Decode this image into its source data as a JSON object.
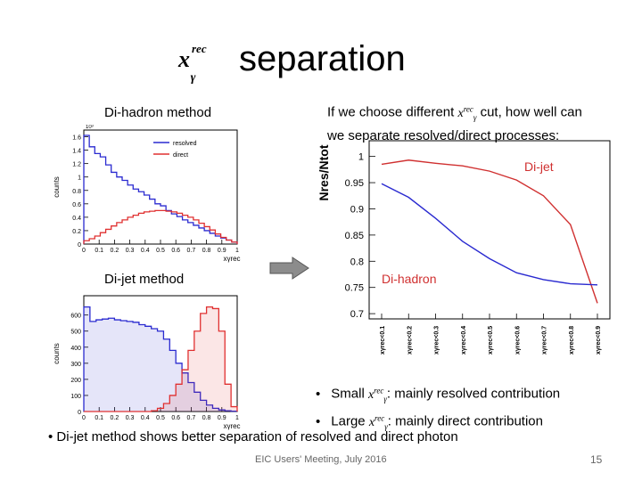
{
  "slide": {
    "title_symbol": "x",
    "title_sup": "rec",
    "title_sub": "γ",
    "title_word": "separation",
    "dihadron_method_label": "Di-hadron method",
    "dijet_method_label": "Di-jet method",
    "question_line1_a": "If we choose different ",
    "question_line1_b": " cut, how well can",
    "question_line2": "we separate resolved/direct processes:",
    "bullet_small_a": "Small ",
    "bullet_small_b": ": mainly resolved contribution",
    "bullet_large_a": "Large ",
    "bullet_large_b": ": mainly direct contribution",
    "bottom_bullet": "•  Di-jet method shows better separation of resolved and direct photon",
    "footer": "EIC Users' Meeting, July 2016",
    "page_number": "15",
    "arrow_icon": "right-arrow-icon"
  },
  "chart_data": [
    {
      "type": "histogram",
      "name": "di-hadron",
      "ylabel": "counts",
      "xlabel": "xγrec",
      "y_multiplier": "10³",
      "ylim": [
        0,
        1.7
      ],
      "xlim": [
        0,
        1.0
      ],
      "yticks": [
        "0",
        "0.2",
        "0.4",
        "0.6",
        "0.8",
        "1",
        "1.2",
        "1.4",
        "1.6"
      ],
      "xticks": [
        "0",
        "0.1",
        "0.2",
        "0.3",
        "0.4",
        "0.5",
        "0.6",
        "0.7",
        "0.8",
        "0.9",
        "1"
      ],
      "legend": [
        "resolved",
        "direct"
      ],
      "colors": {
        "resolved": "#2a2ad0",
        "direct": "#e03030"
      },
      "series": [
        {
          "name": "resolved",
          "values": [
            1.62,
            1.45,
            1.35,
            1.3,
            1.18,
            1.07,
            1.0,
            0.95,
            0.88,
            0.82,
            0.78,
            0.73,
            0.67,
            0.6,
            0.57,
            0.5,
            0.45,
            0.41,
            0.36,
            0.32,
            0.28,
            0.24,
            0.2,
            0.16,
            0.12,
            0.09,
            0.06,
            0.03
          ]
        },
        {
          "name": "direct",
          "values": [
            0.05,
            0.08,
            0.12,
            0.17,
            0.22,
            0.27,
            0.32,
            0.36,
            0.4,
            0.43,
            0.46,
            0.48,
            0.49,
            0.5,
            0.5,
            0.49,
            0.48,
            0.46,
            0.43,
            0.4,
            0.36,
            0.31,
            0.26,
            0.21,
            0.15,
            0.1,
            0.06,
            0.03
          ]
        }
      ]
    },
    {
      "type": "histogram",
      "name": "di-jet",
      "ylabel": "counts",
      "xlabel": "xγrec",
      "ylim": [
        0,
        720
      ],
      "xlim": [
        0,
        1.0
      ],
      "yticks": [
        "0",
        "100",
        "200",
        "300",
        "400",
        "500",
        "600"
      ],
      "xticks": [
        "0",
        "0.1",
        "0.2",
        "0.3",
        "0.4",
        "0.5",
        "0.6",
        "0.7",
        "0.8",
        "0.9",
        "1"
      ],
      "colors": {
        "resolved": "#2a2ad0",
        "direct": "#e03030"
      },
      "series": [
        {
          "name": "resolved",
          "values": [
            650,
            560,
            570,
            575,
            580,
            570,
            565,
            560,
            555,
            540,
            530,
            515,
            500,
            450,
            380,
            300,
            240,
            180,
            120,
            70,
            40,
            20,
            10,
            5,
            2
          ]
        },
        {
          "name": "direct",
          "values": [
            0,
            0,
            0,
            0,
            0,
            0,
            0,
            0,
            0,
            0,
            0,
            5,
            20,
            50,
            100,
            170,
            260,
            380,
            500,
            610,
            650,
            640,
            500,
            170,
            30
          ]
        }
      ]
    },
    {
      "type": "line",
      "name": "purity",
      "ylabel": "Nres/Ntot",
      "ylim": [
        0.69,
        1.03
      ],
      "yticks": [
        "0.7",
        "0.75",
        "0.8",
        "0.85",
        "0.9",
        "0.95",
        "1"
      ],
      "categories": [
        "xγrec<0.1",
        "xγrec<0.2",
        "xγrec<0.3",
        "xγrec<0.4",
        "xγrec<0.5",
        "xγrec<0.6",
        "xγrec<0.7",
        "xγrec<0.8",
        "xγrec<0.9"
      ],
      "series": [
        {
          "name": "Di-jet",
          "color": "#d03030",
          "values": [
            0.985,
            0.993,
            0.987,
            0.982,
            0.972,
            0.955,
            0.925,
            0.87,
            0.72
          ]
        },
        {
          "name": "Di-hadron",
          "color": "#2a2ad0",
          "values": [
            0.948,
            0.922,
            0.882,
            0.838,
            0.805,
            0.778,
            0.765,
            0.757,
            0.755
          ]
        }
      ]
    }
  ]
}
